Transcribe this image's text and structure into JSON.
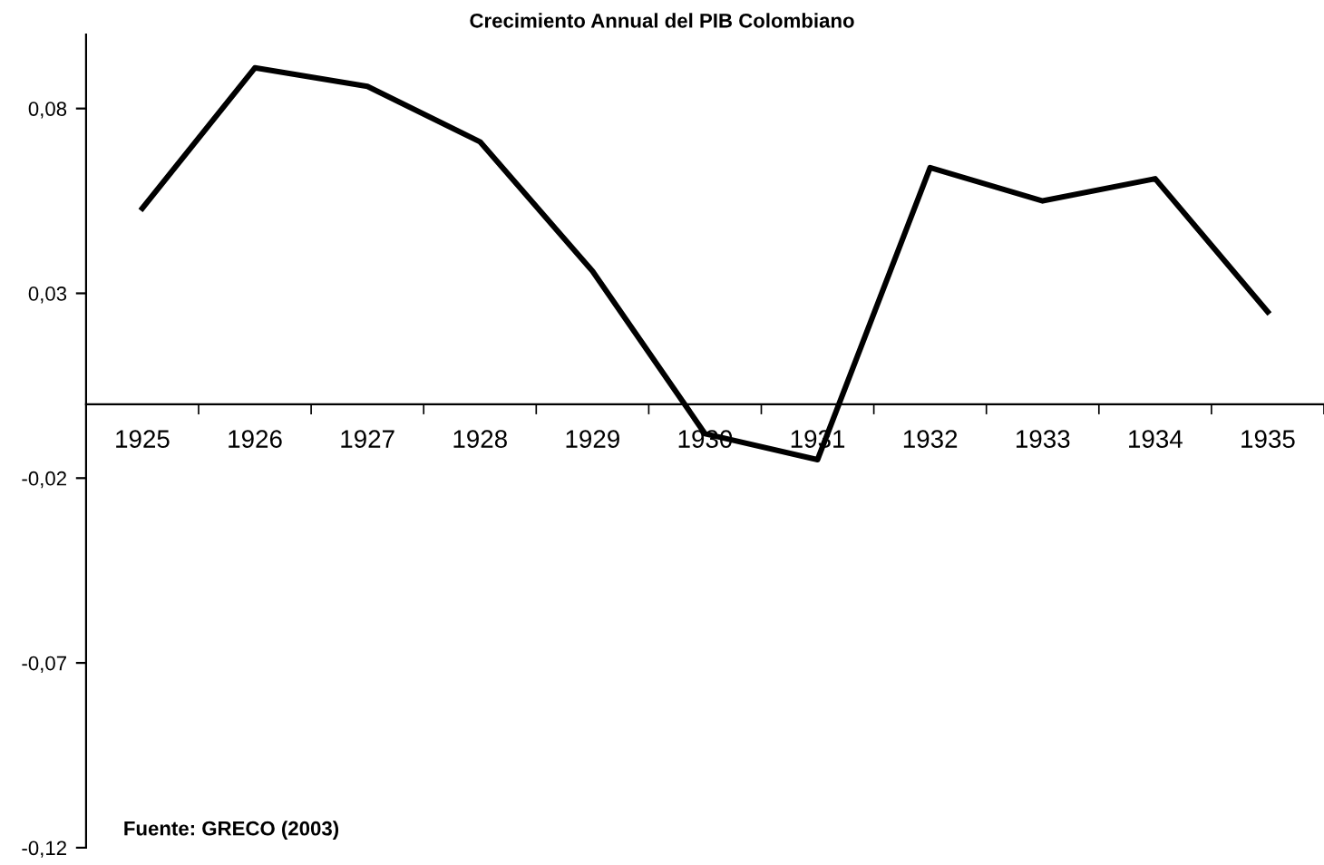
{
  "chart_data": {
    "type": "line",
    "title": "Crecimiento Annual del PIB Colombiano",
    "categories": [
      "1925",
      "1926",
      "1927",
      "1928",
      "1929",
      "1930",
      "1931",
      "1932",
      "1933",
      "1934",
      "1935"
    ],
    "series": [
      {
        "color": "#000000",
        "values": [
          0.053,
          0.091,
          0.086,
          0.071,
          0.036,
          -0.008,
          -0.015,
          0.064,
          0.055,
          0.061,
          0.025
        ]
      }
    ],
    "ylim": [
      -0.12,
      0.1
    ],
    "yticks": [
      {
        "value": -0.12,
        "label": "-0,12"
      },
      {
        "value": -0.07,
        "label": "-0,07"
      },
      {
        "value": -0.02,
        "label": "-0,02"
      },
      {
        "value": 0.03,
        "label": "0,03"
      },
      {
        "value": 0.08,
        "label": "0,08"
      }
    ],
    "annotations": [
      "Fuente: GRECO (2003)"
    ],
    "grid": false,
    "legend": false,
    "marker": "none",
    "line_style": "solid"
  }
}
